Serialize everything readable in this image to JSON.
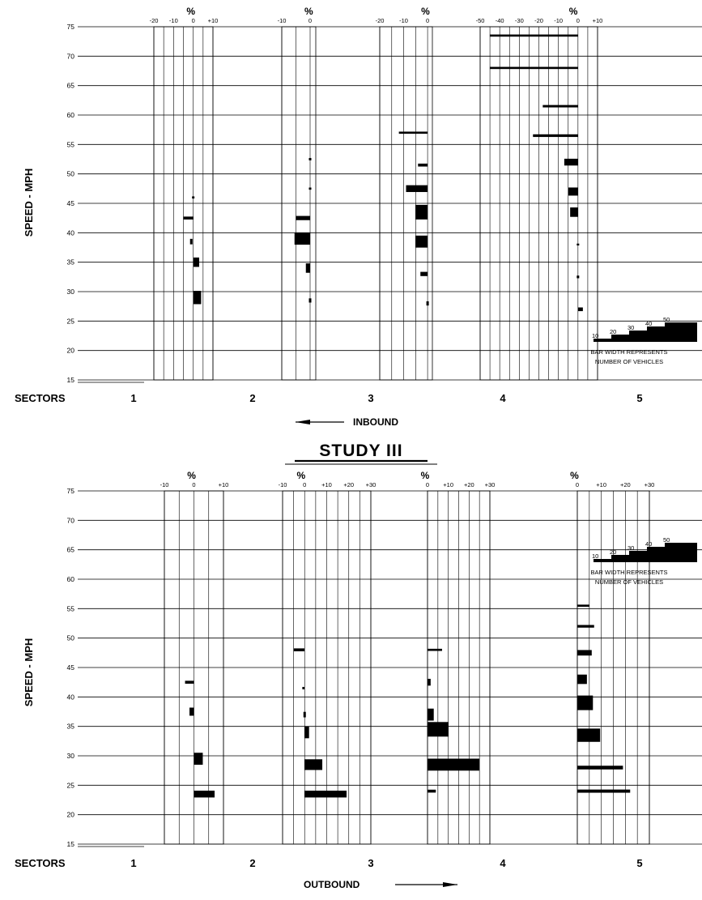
{
  "title": "STUDY III",
  "chart_data": [
    {
      "type": "bar",
      "direction": "INBOUND",
      "ylabel": "SPEED - MPH",
      "ylim": [
        15,
        75
      ],
      "yticks": [
        "15",
        "20",
        "25",
        "30",
        "35",
        "40",
        "45",
        "50",
        "55",
        "60",
        "65",
        "70",
        "75"
      ],
      "sector_label": "SECTORS",
      "sectors": [
        "1",
        "2",
        "3",
        "4",
        "5"
      ],
      "pct_symbol": "%",
      "legend": {
        "steps": [
          "10",
          "20",
          "30",
          "40",
          "50"
        ],
        "text": [
          "BAR WIDTH REPRESENTS",
          "NUMBER OF VEHICLES"
        ]
      },
      "panels": [
        {
          "sector_boundary": 2,
          "tick_labels": [
            "-20",
            "-10",
            "0",
            "+10"
          ],
          "range": [
            -20,
            10
          ],
          "zero_offset_mph": 0,
          "bars": [
            {
              "speed": 46,
              "pct": 0.5,
              "vehicles": 2
            },
            {
              "speed": 42.5,
              "pct": -5,
              "vehicles": 5
            },
            {
              "speed": 38.5,
              "pct": -1,
              "vehicles": 15
            },
            {
              "speed": 35,
              "pct": 3,
              "vehicles": 30
            },
            {
              "speed": 29,
              "pct": 4,
              "vehicles": 45
            }
          ]
        },
        {
          "sector_boundary": 3,
          "tick_labels": [
            "-10",
            "0"
          ],
          "range": [
            -10,
            2
          ],
          "zero_offset_mph": 0,
          "bars": [
            {
              "speed": 52.5,
              "pct": 0.3,
              "vehicles": 3
            },
            {
              "speed": 47.5,
              "pct": 0.2,
              "vehicles": 2
            },
            {
              "speed": 42.5,
              "pct": -5,
              "vehicles": 10
            },
            {
              "speed": 39,
              "pct": -5.5,
              "vehicles": 40
            },
            {
              "speed": 34,
              "pct": -1.5,
              "vehicles": 30
            },
            {
              "speed": 28.5,
              "pct": 0.3,
              "vehicles": 10
            }
          ]
        },
        {
          "sector_boundary": 4,
          "tick_labels": [
            "-20",
            "-10",
            "0"
          ],
          "range": [
            -20,
            2
          ],
          "zero_offset_mph": 0,
          "bars": [
            {
              "speed": 57,
              "pct": -12,
              "vehicles": 2
            },
            {
              "speed": 51.5,
              "pct": -4,
              "vehicles": 5
            },
            {
              "speed": 47.5,
              "pct": -9,
              "vehicles": 20
            },
            {
              "speed": 43.5,
              "pct": -5,
              "vehicles": 50
            },
            {
              "speed": 38.5,
              "pct": -5,
              "vehicles": 40
            },
            {
              "speed": 33,
              "pct": -3,
              "vehicles": 10
            },
            {
              "speed": 28,
              "pct": 1,
              "vehicles": 10
            }
          ]
        },
        {
          "sector_boundary": 5,
          "tick_labels": [
            "-50",
            "-40",
            "-30",
            "-20",
            "-10",
            "0",
            "+10"
          ],
          "range": [
            -50,
            10
          ],
          "zero_offset_mph": 0,
          "bars": [
            {
              "speed": 73.5,
              "pct": -45,
              "vehicles": 2
            },
            {
              "speed": 68,
              "pct": -45,
              "vehicles": 2
            },
            {
              "speed": 61.5,
              "pct": -18,
              "vehicles": 3
            },
            {
              "speed": 56.5,
              "pct": -23,
              "vehicles": 4
            },
            {
              "speed": 52,
              "pct": -7,
              "vehicles": 20
            },
            {
              "speed": 47,
              "pct": -5,
              "vehicles": 25
            },
            {
              "speed": 43.5,
              "pct": -4,
              "vehicles": 30
            },
            {
              "speed": 38,
              "pct": 0.3,
              "vehicles": 1
            },
            {
              "speed": 32.5,
              "pct": 0.5,
              "vehicles": 4
            },
            {
              "speed": 27,
              "pct": 2.5,
              "vehicles": 8
            }
          ]
        }
      ]
    },
    {
      "type": "bar",
      "direction": "OUTBOUND",
      "ylabel": "SPEED - MPH",
      "ylim": [
        15,
        75
      ],
      "yticks": [
        "15",
        "20",
        "25",
        "30",
        "35",
        "40",
        "45",
        "50",
        "55",
        "60",
        "65",
        "70",
        "75"
      ],
      "sector_label": "SECTORS",
      "sectors": [
        "1",
        "2",
        "3",
        "4",
        "5"
      ],
      "pct_symbol": "%",
      "legend": {
        "steps": [
          "10",
          "20",
          "30",
          "40",
          "50"
        ],
        "text": [
          "BAR WIDTH REPRESENTS",
          "NUMBER OF VEHICLES"
        ]
      },
      "panels": [
        {
          "sector_boundary": 2,
          "tick_labels": [
            "-10",
            "0",
            "+10"
          ],
          "range": [
            -10,
            10
          ],
          "bars": [
            {
              "speed": 42.5,
              "pct": -3,
              "vehicles": 5
            },
            {
              "speed": 37.5,
              "pct": -1.5,
              "vehicles": 25
            },
            {
              "speed": 29.5,
              "pct": 3,
              "vehicles": 40
            },
            {
              "speed": 23.5,
              "pct": 7,
              "vehicles": 20
            }
          ]
        },
        {
          "sector_boundary": 3,
          "tick_labels": [
            "-10",
            "0",
            "+10",
            "+20",
            "+30"
          ],
          "range": [
            -10,
            30
          ],
          "bars": [
            {
              "speed": 48,
              "pct": -5,
              "vehicles": 5
            },
            {
              "speed": 41.5,
              "pct": -0.5,
              "vehicles": 3
            },
            {
              "speed": 37,
              "pct": 1,
              "vehicles": 15
            },
            {
              "speed": 34,
              "pct": 2,
              "vehicles": 40
            },
            {
              "speed": 28.5,
              "pct": 8,
              "vehicles": 35
            },
            {
              "speed": 23.5,
              "pct": 19,
              "vehicles": 20
            }
          ]
        },
        {
          "sector_boundary": 4,
          "tick_labels": [
            "0",
            "+10",
            "+20",
            "+30"
          ],
          "range": [
            0,
            30
          ],
          "bars": [
            {
              "speed": 48,
              "pct": 7,
              "vehicles": 2
            },
            {
              "speed": 42.5,
              "pct": 1.5,
              "vehicles": 20
            },
            {
              "speed": 37,
              "pct": 3,
              "vehicles": 40
            },
            {
              "speed": 34.5,
              "pct": 10,
              "vehicles": 50
            },
            {
              "speed": 28.5,
              "pct": 25,
              "vehicles": 40
            },
            {
              "speed": 24,
              "pct": 4,
              "vehicles": 5
            }
          ]
        },
        {
          "sector_boundary": 5,
          "tick_labels": [
            "0",
            "+10",
            "+20",
            "+30"
          ],
          "range": [
            0,
            30
          ],
          "bars": [
            {
              "speed": 55.5,
              "pct": 5,
              "vehicles": 2
            },
            {
              "speed": 52,
              "pct": 7,
              "vehicles": 4
            },
            {
              "speed": 47.5,
              "pct": 6,
              "vehicles": 15
            },
            {
              "speed": 43,
              "pct": 4,
              "vehicles": 30
            },
            {
              "speed": 39,
              "pct": 6.5,
              "vehicles": 50
            },
            {
              "speed": 33.5,
              "pct": 9.5,
              "vehicles": 45
            },
            {
              "speed": 28,
              "pct": 19,
              "vehicles": 8
            },
            {
              "speed": 24,
              "pct": 22,
              "vehicles": 6
            }
          ]
        }
      ]
    }
  ]
}
